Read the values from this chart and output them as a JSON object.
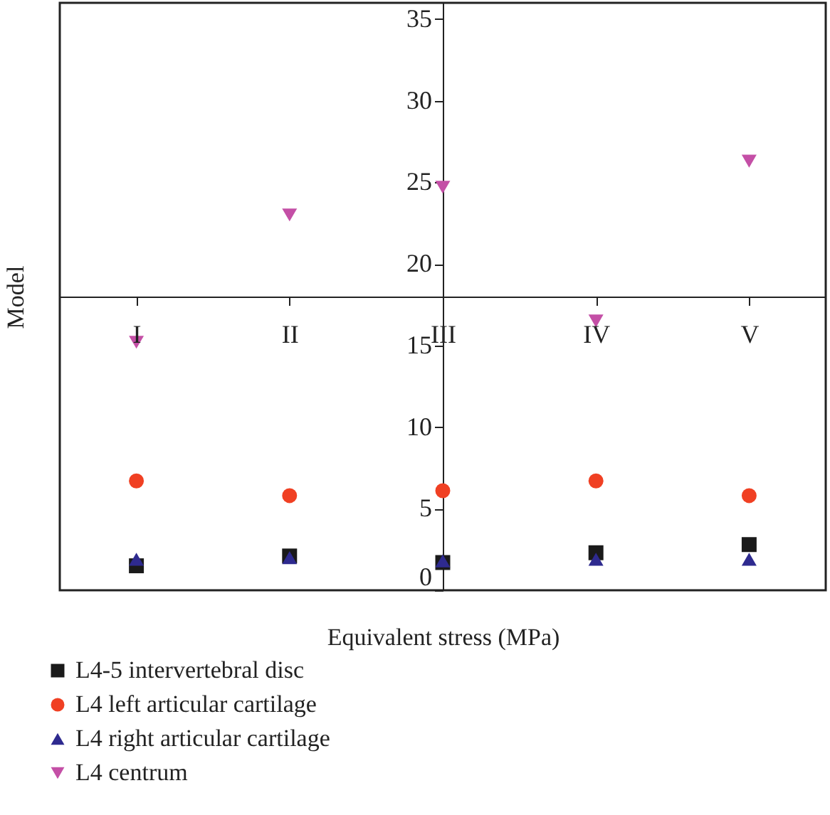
{
  "chart_data": {
    "type": "scatter",
    "xlabel": "Equivalent stress (MPa)",
    "ylabel": "Model",
    "categories": [
      "I",
      "II",
      "III",
      "IV",
      "V"
    ],
    "series": [
      {
        "name": "L4-5 intervertebral disc",
        "color": "#1a1a1a",
        "marker": "square",
        "values": [
          1.5,
          2.1,
          1.7,
          2.3,
          2.8
        ]
      },
      {
        "name": "L4 left articular cartilage",
        "color": "#f04023",
        "marker": "circle",
        "values": [
          6.7,
          5.8,
          6.1,
          6.7,
          5.8
        ]
      },
      {
        "name": "L4 right articular cartilage",
        "color": "#2e2a8f",
        "marker": "triangle",
        "values": [
          1.9,
          2.0,
          1.8,
          1.9,
          1.9
        ]
      },
      {
        "name": "L4 centrum",
        "color": "#c44fa6",
        "marker": "triangle-down",
        "values": [
          15.2,
          23.0,
          24.7,
          16.5,
          26.3
        ]
      }
    ],
    "ylim": [
      0,
      36
    ],
    "yticks": [
      0,
      5,
      10,
      15,
      20,
      25,
      30,
      35
    ],
    "grid": false,
    "legend": "bottom"
  }
}
